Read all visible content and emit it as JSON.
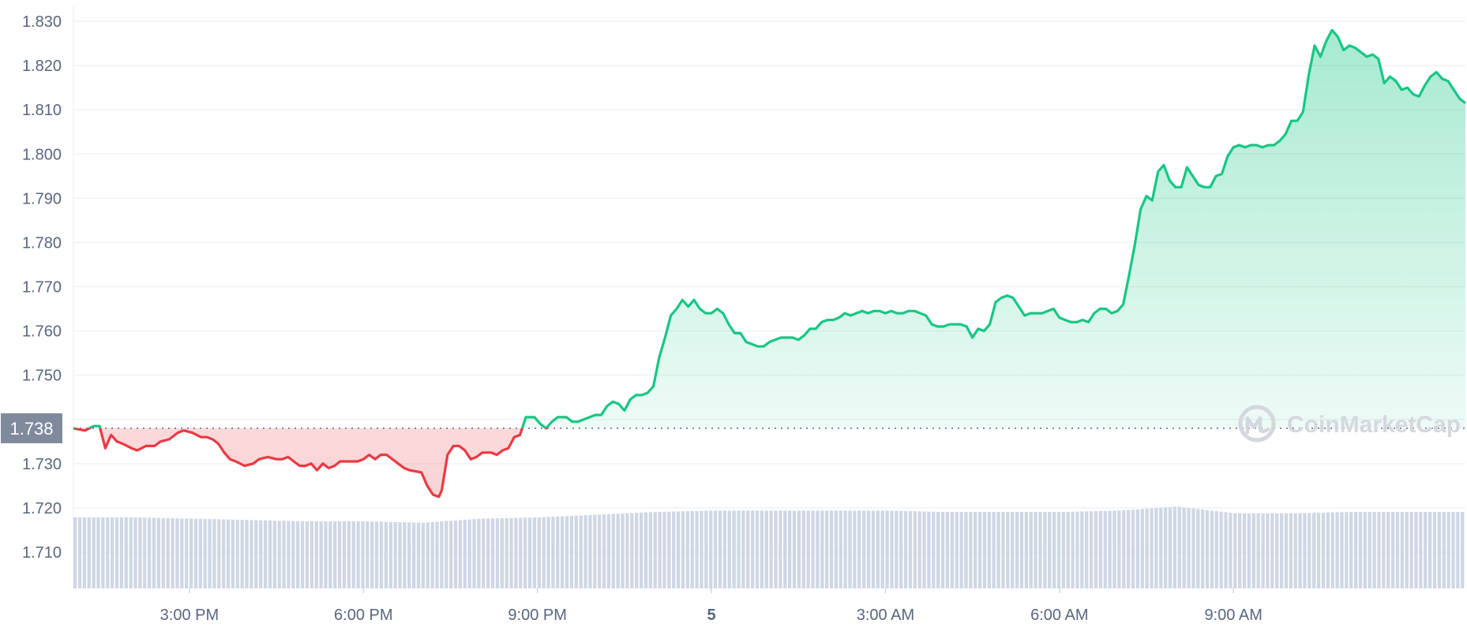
{
  "chart_data": {
    "type": "area",
    "y_ticks": [
      "1.830",
      "1.820",
      "1.810",
      "1.800",
      "1.790",
      "1.780",
      "1.770",
      "1.760",
      "1.750",
      "1.740",
      "1.730",
      "1.720",
      "1.710"
    ],
    "y_tick_values": [
      1.83,
      1.82,
      1.81,
      1.8,
      1.79,
      1.78,
      1.77,
      1.76,
      1.75,
      1.74,
      1.73,
      1.72,
      1.71
    ],
    "ylim": [
      1.7,
      1.834
    ],
    "x_ticks": [
      {
        "label": "3:00 PM",
        "t": 2,
        "bold": false
      },
      {
        "label": "6:00 PM",
        "t": 5,
        "bold": false
      },
      {
        "label": "9:00 PM",
        "t": 8,
        "bold": false
      },
      {
        "label": "5",
        "t": 11,
        "bold": true
      },
      {
        "label": "3:00 AM",
        "t": 14,
        "bold": false
      },
      {
        "label": "6:00 AM",
        "t": 17,
        "bold": false
      },
      {
        "label": "9:00 AM",
        "t": 20,
        "bold": false
      }
    ],
    "xlim": [
      0,
      24
    ],
    "reference_price": 1.738,
    "reference_label": "1.738",
    "colors": {
      "up": "#16c784",
      "down": "#ea3943",
      "volume": "#cfd6e4",
      "badge": "#808a9d"
    },
    "price_series": [
      [
        0.0,
        1.738
      ],
      [
        0.2,
        1.7375
      ],
      [
        0.35,
        1.7385
      ],
      [
        0.45,
        1.7385
      ],
      [
        0.55,
        1.7335
      ],
      [
        0.65,
        1.7365
      ],
      [
        0.75,
        1.735
      ],
      [
        0.85,
        1.7345
      ],
      [
        1.0,
        1.7335
      ],
      [
        1.1,
        1.733
      ],
      [
        1.25,
        1.734
      ],
      [
        1.4,
        1.734
      ],
      [
        1.5,
        1.735
      ],
      [
        1.65,
        1.7355
      ],
      [
        1.8,
        1.737
      ],
      [
        1.9,
        1.7375
      ],
      [
        2.05,
        1.737
      ],
      [
        2.2,
        1.736
      ],
      [
        2.3,
        1.736
      ],
      [
        2.4,
        1.7355
      ],
      [
        2.5,
        1.7345
      ],
      [
        2.6,
        1.7325
      ],
      [
        2.7,
        1.731
      ],
      [
        2.8,
        1.7305
      ],
      [
        2.95,
        1.7295
      ],
      [
        3.1,
        1.73
      ],
      [
        3.2,
        1.731
      ],
      [
        3.35,
        1.7315
      ],
      [
        3.5,
        1.731
      ],
      [
        3.6,
        1.731
      ],
      [
        3.7,
        1.7315
      ],
      [
        3.8,
        1.7305
      ],
      [
        3.9,
        1.7295
      ],
      [
        4.0,
        1.7295
      ],
      [
        4.1,
        1.73
      ],
      [
        4.2,
        1.7285
      ],
      [
        4.3,
        1.73
      ],
      [
        4.4,
        1.729
      ],
      [
        4.5,
        1.7295
      ],
      [
        4.6,
        1.7305
      ],
      [
        4.75,
        1.7305
      ],
      [
        4.9,
        1.7305
      ],
      [
        5.0,
        1.731
      ],
      [
        5.1,
        1.732
      ],
      [
        5.2,
        1.731
      ],
      [
        5.3,
        1.732
      ],
      [
        5.4,
        1.732
      ],
      [
        5.5,
        1.731
      ],
      [
        5.6,
        1.73
      ],
      [
        5.7,
        1.729
      ],
      [
        5.8,
        1.7285
      ],
      [
        6.0,
        1.728
      ],
      [
        6.1,
        1.725
      ],
      [
        6.2,
        1.723
      ],
      [
        6.3,
        1.7225
      ],
      [
        6.35,
        1.724
      ],
      [
        6.45,
        1.732
      ],
      [
        6.55,
        1.734
      ],
      [
        6.65,
        1.734
      ],
      [
        6.75,
        1.733
      ],
      [
        6.85,
        1.731
      ],
      [
        6.95,
        1.7315
      ],
      [
        7.05,
        1.7325
      ],
      [
        7.2,
        1.7325
      ],
      [
        7.3,
        1.732
      ],
      [
        7.4,
        1.733
      ],
      [
        7.5,
        1.7335
      ],
      [
        7.6,
        1.736
      ],
      [
        7.7,
        1.7365
      ],
      [
        7.8,
        1.7405
      ],
      [
        7.95,
        1.7405
      ],
      [
        8.05,
        1.739
      ],
      [
        8.15,
        1.738
      ],
      [
        8.25,
        1.7395
      ],
      [
        8.35,
        1.7405
      ],
      [
        8.5,
        1.7405
      ],
      [
        8.6,
        1.7395
      ],
      [
        8.7,
        1.7395
      ],
      [
        8.8,
        1.74
      ],
      [
        8.9,
        1.7405
      ],
      [
        9.0,
        1.741
      ],
      [
        9.1,
        1.741
      ],
      [
        9.2,
        1.743
      ],
      [
        9.3,
        1.744
      ],
      [
        9.4,
        1.7435
      ],
      [
        9.5,
        1.742
      ],
      [
        9.6,
        1.7445
      ],
      [
        9.7,
        1.7455
      ],
      [
        9.8,
        1.7455
      ],
      [
        9.9,
        1.746
      ],
      [
        10.0,
        1.7475
      ],
      [
        10.1,
        1.754
      ],
      [
        10.2,
        1.7585
      ],
      [
        10.3,
        1.7635
      ],
      [
        10.4,
        1.765
      ],
      [
        10.5,
        1.767
      ],
      [
        10.6,
        1.7655
      ],
      [
        10.7,
        1.767
      ],
      [
        10.8,
        1.765
      ],
      [
        10.9,
        1.764
      ],
      [
        11.0,
        1.764
      ],
      [
        11.1,
        1.765
      ],
      [
        11.2,
        1.764
      ],
      [
        11.3,
        1.7615
      ],
      [
        11.4,
        1.7595
      ],
      [
        11.5,
        1.7595
      ],
      [
        11.6,
        1.7575
      ],
      [
        11.7,
        1.757
      ],
      [
        11.8,
        1.7565
      ],
      [
        11.9,
        1.7565
      ],
      [
        12.0,
        1.7575
      ],
      [
        12.1,
        1.758
      ],
      [
        12.2,
        1.7585
      ],
      [
        12.3,
        1.7585
      ],
      [
        12.4,
        1.7585
      ],
      [
        12.5,
        1.758
      ],
      [
        12.6,
        1.759
      ],
      [
        12.7,
        1.7605
      ],
      [
        12.8,
        1.7605
      ],
      [
        12.9,
        1.762
      ],
      [
        13.0,
        1.7625
      ],
      [
        13.1,
        1.7625
      ],
      [
        13.2,
        1.763
      ],
      [
        13.3,
        1.764
      ],
      [
        13.4,
        1.7635
      ],
      [
        13.5,
        1.764
      ],
      [
        13.6,
        1.7645
      ],
      [
        13.7,
        1.764
      ],
      [
        13.8,
        1.7645
      ],
      [
        13.9,
        1.7645
      ],
      [
        14.0,
        1.764
      ],
      [
        14.1,
        1.7645
      ],
      [
        14.2,
        1.764
      ],
      [
        14.3,
        1.764
      ],
      [
        14.4,
        1.7645
      ],
      [
        14.5,
        1.7645
      ],
      [
        14.6,
        1.764
      ],
      [
        14.7,
        1.7635
      ],
      [
        14.8,
        1.7615
      ],
      [
        14.9,
        1.761
      ],
      [
        15.0,
        1.761
      ],
      [
        15.1,
        1.7615
      ],
      [
        15.2,
        1.7615
      ],
      [
        15.3,
        1.7615
      ],
      [
        15.4,
        1.761
      ],
      [
        15.5,
        1.7585
      ],
      [
        15.6,
        1.7605
      ],
      [
        15.7,
        1.76
      ],
      [
        15.8,
        1.7615
      ],
      [
        15.9,
        1.7665
      ],
      [
        16.0,
        1.7675
      ],
      [
        16.1,
        1.768
      ],
      [
        16.2,
        1.7675
      ],
      [
        16.3,
        1.7655
      ],
      [
        16.4,
        1.7635
      ],
      [
        16.5,
        1.764
      ],
      [
        16.6,
        1.764
      ],
      [
        16.7,
        1.764
      ],
      [
        16.8,
        1.7645
      ],
      [
        16.9,
        1.765
      ],
      [
        17.0,
        1.763
      ],
      [
        17.1,
        1.7625
      ],
      [
        17.2,
        1.762
      ],
      [
        17.3,
        1.762
      ],
      [
        17.4,
        1.7625
      ],
      [
        17.5,
        1.762
      ],
      [
        17.6,
        1.764
      ],
      [
        17.7,
        1.765
      ],
      [
        17.8,
        1.765
      ],
      [
        17.9,
        1.764
      ],
      [
        18.0,
        1.7645
      ],
      [
        18.1,
        1.766
      ],
      [
        18.2,
        1.7725
      ],
      [
        18.3,
        1.7795
      ],
      [
        18.4,
        1.7875
      ],
      [
        18.5,
        1.7905
      ],
      [
        18.6,
        1.7895
      ],
      [
        18.7,
        1.796
      ],
      [
        18.8,
        1.7975
      ],
      [
        18.9,
        1.794
      ],
      [
        19.0,
        1.7925
      ],
      [
        19.1,
        1.7925
      ],
      [
        19.2,
        1.797
      ],
      [
        19.3,
        1.795
      ],
      [
        19.4,
        1.793
      ],
      [
        19.5,
        1.7925
      ],
      [
        19.6,
        1.7925
      ],
      [
        19.7,
        1.795
      ],
      [
        19.8,
        1.7955
      ],
      [
        19.9,
        1.7995
      ],
      [
        20.0,
        1.8015
      ],
      [
        20.1,
        1.802
      ],
      [
        20.2,
        1.8015
      ],
      [
        20.3,
        1.802
      ],
      [
        20.4,
        1.802
      ],
      [
        20.5,
        1.8015
      ],
      [
        20.6,
        1.802
      ],
      [
        20.7,
        1.802
      ],
      [
        20.8,
        1.803
      ],
      [
        20.9,
        1.8045
      ],
      [
        21.0,
        1.8075
      ],
      [
        21.1,
        1.8075
      ],
      [
        21.2,
        1.8095
      ],
      [
        21.3,
        1.818
      ],
      [
        21.4,
        1.8245
      ],
      [
        21.5,
        1.822
      ],
      [
        21.6,
        1.8255
      ],
      [
        21.7,
        1.828
      ],
      [
        21.8,
        1.8265
      ],
      [
        21.9,
        1.8235
      ],
      [
        22.0,
        1.8245
      ],
      [
        22.1,
        1.824
      ],
      [
        22.2,
        1.823
      ],
      [
        22.3,
        1.822
      ],
      [
        22.4,
        1.8225
      ],
      [
        22.5,
        1.8215
      ],
      [
        22.6,
        1.816
      ],
      [
        22.7,
        1.8175
      ],
      [
        22.8,
        1.8165
      ],
      [
        22.9,
        1.8145
      ],
      [
        23.0,
        1.815
      ],
      [
        23.1,
        1.8135
      ],
      [
        23.2,
        1.813
      ],
      [
        23.3,
        1.8155
      ],
      [
        23.4,
        1.8175
      ],
      [
        23.5,
        1.8185
      ],
      [
        23.6,
        1.817
      ],
      [
        23.7,
        1.8165
      ],
      [
        23.8,
        1.8145
      ],
      [
        23.9,
        1.8125
      ],
      [
        24.0,
        1.8115
      ]
    ],
    "volume_levels": [
      [
        0,
        0.53
      ],
      [
        1,
        0.53
      ],
      [
        2,
        0.52
      ],
      [
        3,
        0.51
      ],
      [
        4,
        0.5
      ],
      [
        5,
        0.5
      ],
      [
        6,
        0.49
      ],
      [
        7,
        0.52
      ],
      [
        8,
        0.53
      ],
      [
        9,
        0.55
      ],
      [
        10,
        0.57
      ],
      [
        11,
        0.58
      ],
      [
        12,
        0.58
      ],
      [
        13,
        0.58
      ],
      [
        14,
        0.58
      ],
      [
        15,
        0.57
      ],
      [
        16,
        0.57
      ],
      [
        17,
        0.57
      ],
      [
        18,
        0.58
      ],
      [
        19,
        0.61
      ],
      [
        20,
        0.56
      ],
      [
        21,
        0.56
      ],
      [
        22,
        0.57
      ],
      [
        23,
        0.57
      ],
      [
        24,
        0.57
      ]
    ]
  },
  "watermark": {
    "text": "CoinMarketCap",
    "icon": "coinmarketcap-logo-icon"
  }
}
